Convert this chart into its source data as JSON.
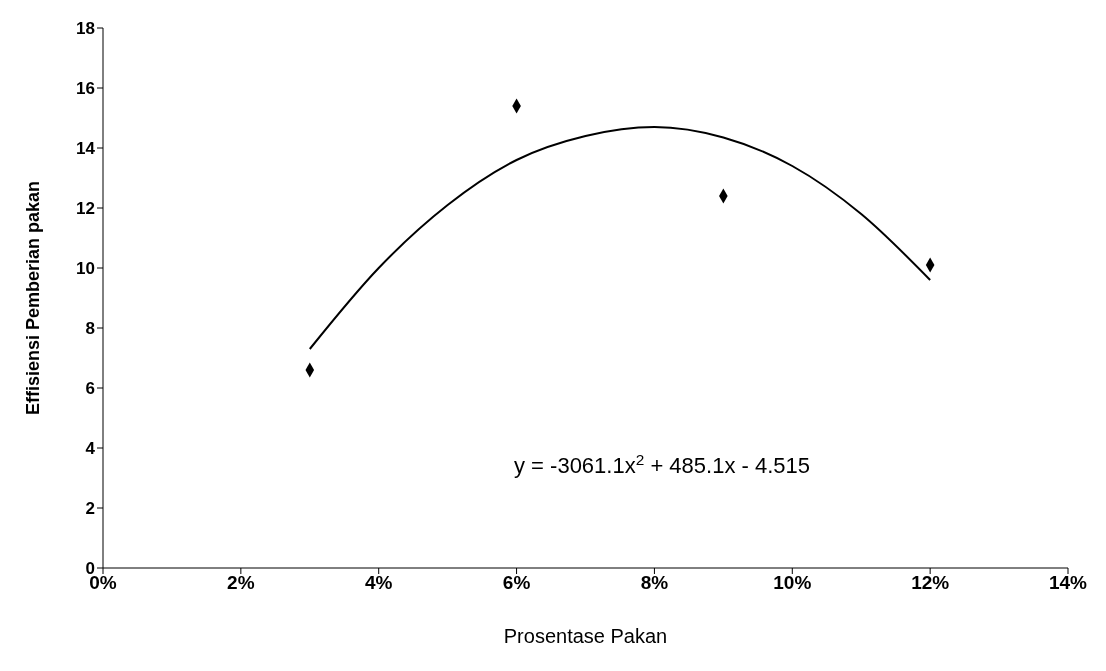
{
  "chart_data": {
    "type": "scatter",
    "xlabel": "Prosentase Pakan",
    "ylabel": "Effisiensi Pemberian pakan",
    "xlim": [
      0,
      14
    ],
    "xticks": [
      {
        "value": 0,
        "label": "0%"
      },
      {
        "value": 2,
        "label": "2%"
      },
      {
        "value": 4,
        "label": "4%"
      },
      {
        "value": 6,
        "label": "6%"
      },
      {
        "value": 8,
        "label": "8%"
      },
      {
        "value": 10,
        "label": "10%"
      },
      {
        "value": 12,
        "label": "12%"
      },
      {
        "value": 14,
        "label": "14%"
      }
    ],
    "ylim": [
      0,
      18
    ],
    "yticks": [
      0,
      2,
      4,
      6,
      8,
      10,
      12,
      14,
      16,
      18
    ],
    "series": [
      {
        "color": "#000000",
        "marker": "diamond",
        "x": [
          3,
          6,
          9,
          12
        ],
        "values": [
          6.6,
          15.4,
          12.4,
          10.1
        ]
      },
      {
        "type": "line",
        "color": "#000000",
        "line_style": "solid",
        "marker": "none",
        "x": [
          3,
          4,
          5,
          6,
          7,
          8,
          9,
          10,
          11,
          12
        ],
        "values": [
          7.3,
          10.0,
          12.1,
          13.6,
          14.4,
          14.7,
          14.35,
          13.4,
          11.8,
          9.6
        ]
      }
    ],
    "annotations": [
      "y = -3061.1x$^{2}$ + 485.1x - 4.515"
    ]
  }
}
